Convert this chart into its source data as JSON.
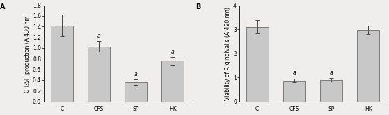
{
  "panel_A": {
    "label": "A",
    "categories": [
      "C",
      "CFS",
      "SP",
      "HK"
    ],
    "values": [
      1.42,
      1.03,
      0.36,
      0.76
    ],
    "errors": [
      0.2,
      0.1,
      0.05,
      0.07
    ],
    "ylabel": "CH₃SH production (A 430 nm)",
    "ylim": [
      0,
      1.8
    ],
    "yticks": [
      0.0,
      0.2,
      0.4,
      0.6,
      0.8,
      1.0,
      1.2,
      1.4,
      1.6,
      1.8
    ],
    "sig_labels": [
      null,
      "a",
      "a",
      "a"
    ]
  },
  "panel_B": {
    "label": "B",
    "categories": [
      "C",
      "CFS",
      "SP",
      "HK"
    ],
    "values": [
      3.1,
      0.87,
      0.9,
      2.98
    ],
    "errors": [
      0.28,
      0.08,
      0.07,
      0.18
    ],
    "ylabel": "Viability of P. gingivalis (A 490 nm)",
    "ylim": [
      0,
      4
    ],
    "yticks": [
      0,
      1,
      2,
      3,
      4
    ],
    "sig_labels": [
      null,
      "a",
      "a",
      null
    ]
  },
  "bar_color": "#c8c8c8",
  "bar_edgecolor": "#555555",
  "bar_width": 0.6,
  "error_color": "#444444",
  "sig_fontsize": 5.5,
  "tick_fontsize": 5.5,
  "label_fontsize": 5.5,
  "panel_label_fontsize": 7,
  "bg_color": "#f0eeec"
}
